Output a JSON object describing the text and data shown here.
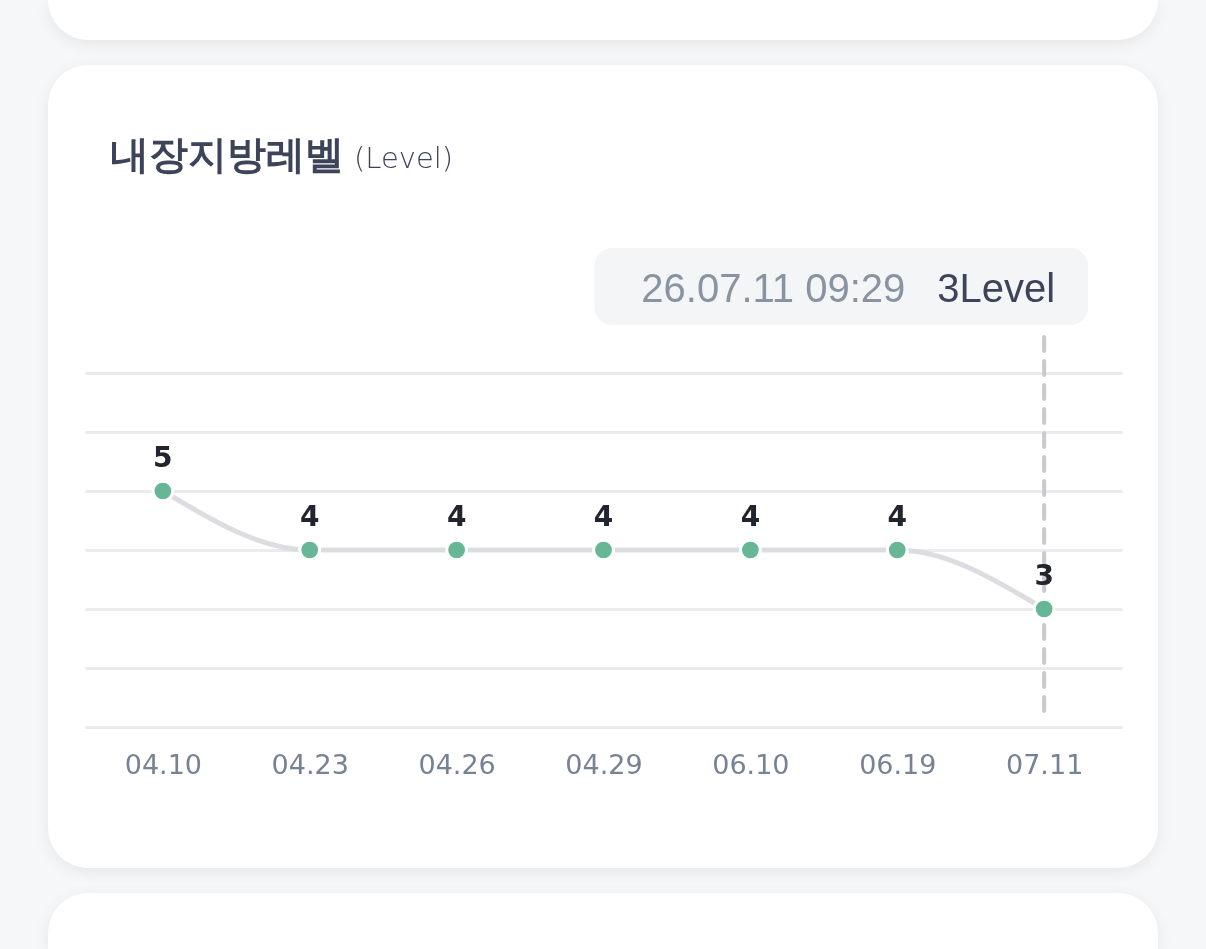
{
  "chart_data": {
    "type": "line",
    "title": "내장지방레벨",
    "subtitle": "(Level)",
    "categories": [
      "04.10",
      "04.23",
      "04.26",
      "04.29",
      "06.10",
      "06.19",
      "07.11"
    ],
    "series": [
      {
        "color": "#67b797",
        "values": [
          5,
          4,
          4,
          4,
          4,
          4,
          3
        ]
      }
    ],
    "ylim": [
      1,
      7
    ],
    "yticks": [
      1,
      2,
      3,
      4,
      5,
      6,
      7
    ],
    "grid": "y",
    "tick_labels": "x",
    "data_labels": true,
    "marker": "circle",
    "ref_lines": [
      {
        "axis": "x",
        "value": "07.11",
        "color": "#c8cacf",
        "line_style": "dashed"
      }
    ],
    "annotations": [
      "26.07.11 09:29",
      "3Level"
    ]
  }
}
